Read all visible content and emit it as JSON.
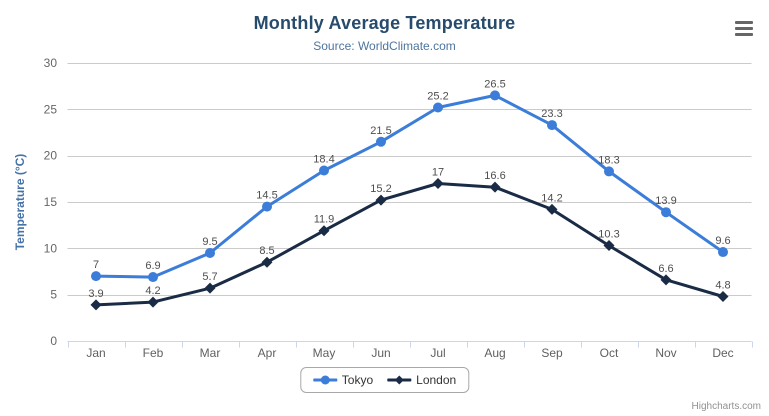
{
  "header": {
    "title": "Monthly Average Temperature",
    "subtitle": "Source: WorldClimate.com"
  },
  "credits": {
    "label": "Highcharts.com"
  },
  "colors": {
    "title": "#274b6d",
    "subtitle": "#4d759e",
    "axis_title": "#4572a7",
    "axis_labels": "#666666",
    "x_labels": "#606060",
    "axis_line": "#ccd6eb",
    "gridline": "#cbcbcb",
    "data_label": "#4e4e4e",
    "credits": "#919191",
    "tokyo": "#3b7dd8",
    "london": "#1a2b45"
  },
  "chart_data": {
    "type": "line",
    "title": "Monthly Average Temperature",
    "subtitle": "Source: WorldClimate.com",
    "categories": [
      "Jan",
      "Feb",
      "Mar",
      "Apr",
      "May",
      "Jun",
      "Jul",
      "Aug",
      "Sep",
      "Oct",
      "Nov",
      "Dec"
    ],
    "series": [
      {
        "name": "Tokyo",
        "color": "#3b7dd8",
        "marker": "circle",
        "values": [
          7,
          6.9,
          9.5,
          14.5,
          18.4,
          21.5,
          25.2,
          26.5,
          23.3,
          18.3,
          13.9,
          9.6
        ]
      },
      {
        "name": "London",
        "color": "#1a2b45",
        "marker": "diamond",
        "values": [
          3.9,
          4.2,
          5.7,
          8.5,
          11.9,
          15.2,
          17,
          16.6,
          14.2,
          10.3,
          6.6,
          4.8
        ]
      }
    ],
    "xlabel": "",
    "ylabel": "Temperature (°C)",
    "ylim": [
      0,
      30
    ],
    "ytick_step": 5,
    "yticks": [
      0,
      5,
      10,
      15,
      20,
      25,
      30
    ],
    "grid": true,
    "data_labels": true,
    "legend_position": "bottom"
  }
}
